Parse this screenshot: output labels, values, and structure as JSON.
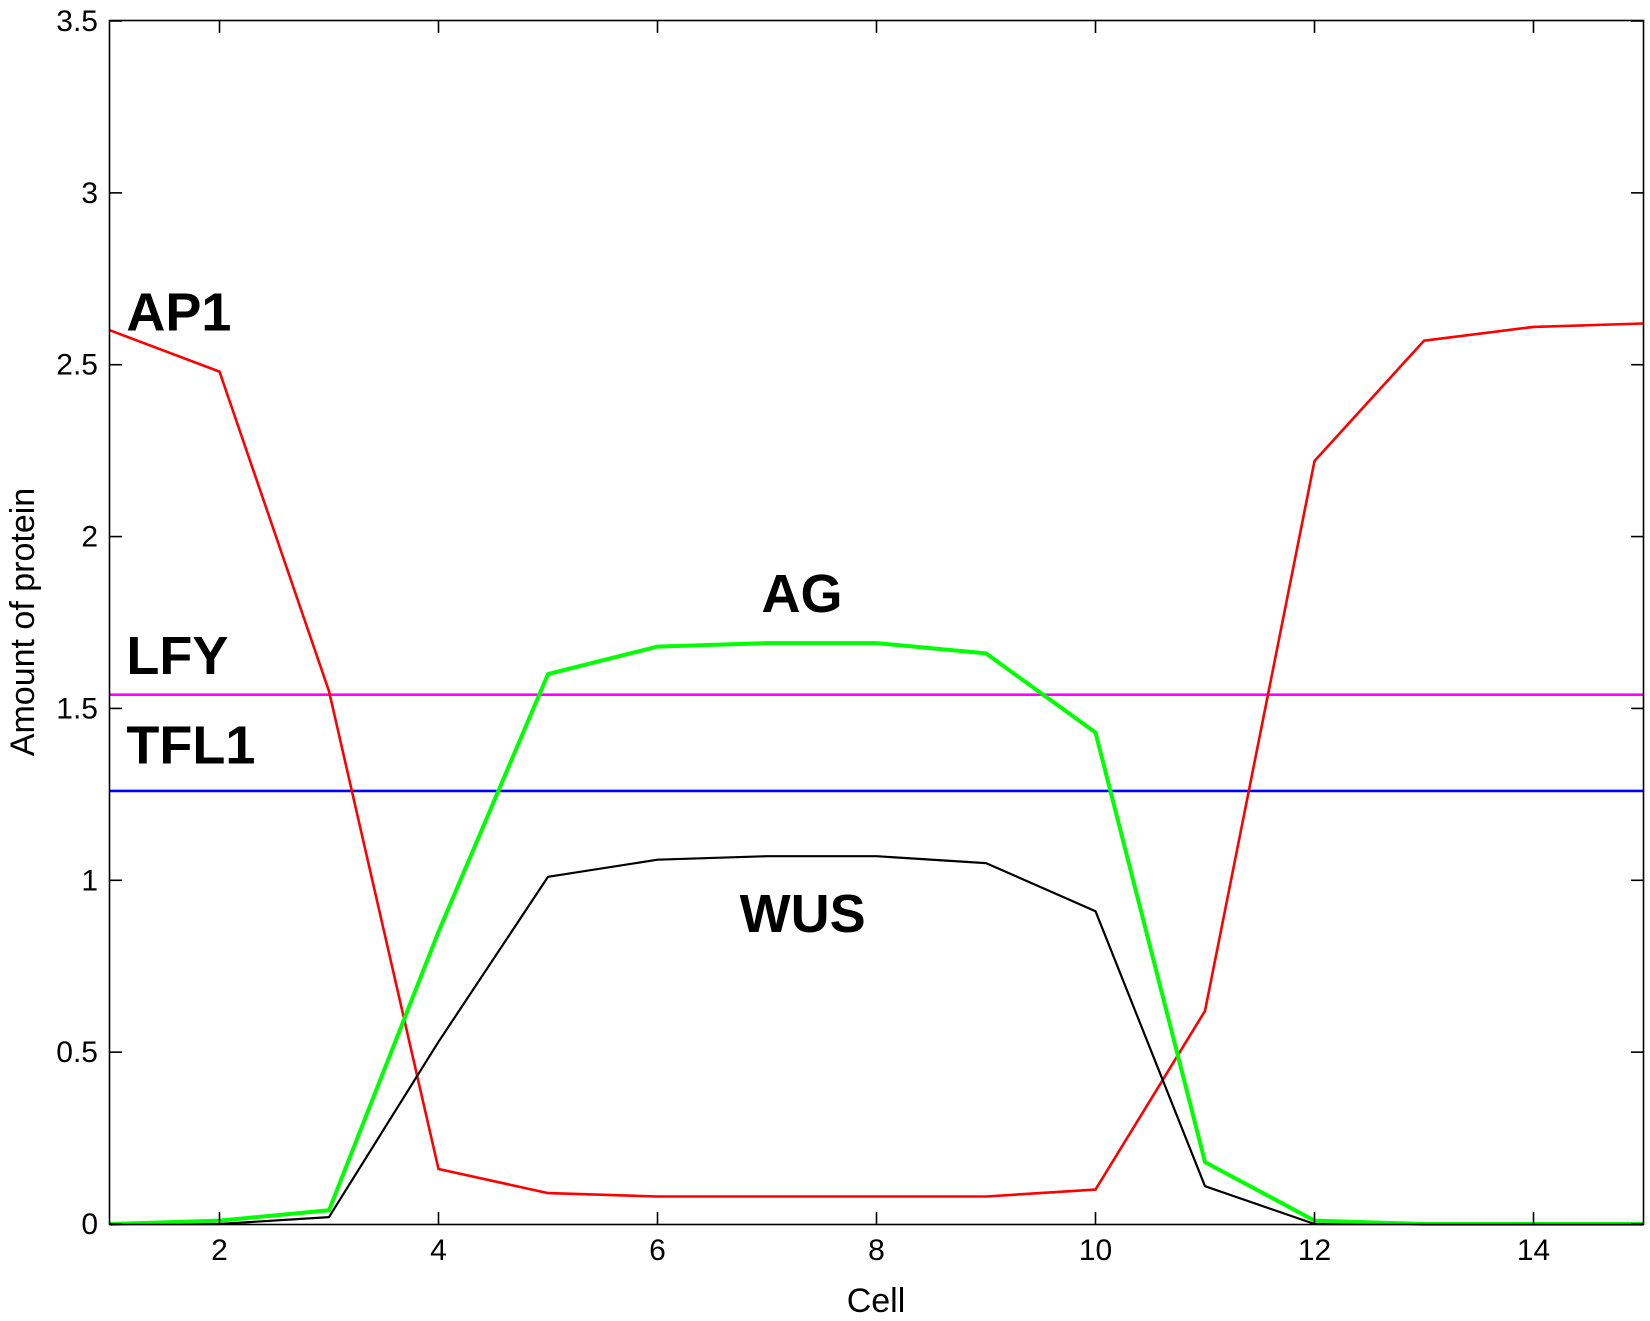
{
  "chart_data": {
    "type": "line",
    "title": "",
    "xlabel": "Cell",
    "ylabel": "Amount of protein",
    "xlim": [
      1,
      15
    ],
    "ylim": [
      0,
      3.5
    ],
    "xticks": [
      2,
      4,
      6,
      8,
      10,
      12,
      14
    ],
    "yticks": [
      0,
      0.5,
      1,
      1.5,
      2,
      2.5,
      3,
      3.5
    ],
    "ytick_labels": [
      "0",
      "0.5",
      "1",
      "1.5",
      "2",
      "2.5",
      "3",
      "3.5"
    ],
    "grid": false,
    "x": [
      1,
      2,
      3,
      4,
      5,
      6,
      7,
      8,
      9,
      10,
      11,
      12,
      13,
      14,
      15
    ],
    "series": [
      {
        "name": "AP1",
        "color": "#ff0000",
        "values": [
          2.6,
          2.48,
          1.55,
          0.16,
          0.09,
          0.08,
          0.08,
          0.08,
          0.08,
          0.1,
          0.62,
          2.22,
          2.57,
          2.61,
          2.62
        ]
      },
      {
        "name": "AG",
        "color": "#00ff00",
        "values": [
          0.0,
          0.01,
          0.04,
          0.85,
          1.6,
          1.68,
          1.69,
          1.69,
          1.66,
          1.43,
          0.18,
          0.01,
          0.0,
          0.0,
          0.0
        ]
      },
      {
        "name": "WUS",
        "color": "#000000",
        "values": [
          0.0,
          0.0,
          0.02,
          0.53,
          1.01,
          1.06,
          1.07,
          1.07,
          1.05,
          0.91,
          0.11,
          0.0,
          0.0,
          0.0,
          0.0
        ]
      },
      {
        "name": "LFY",
        "color": "#ff00ff",
        "values": [
          1.54,
          1.54,
          1.54,
          1.54,
          1.54,
          1.54,
          1.54,
          1.54,
          1.54,
          1.54,
          1.54,
          1.54,
          1.54,
          1.54,
          1.54
        ]
      },
      {
        "name": "TFL1",
        "color": "#0000ff",
        "values": [
          1.26,
          1.26,
          1.26,
          1.26,
          1.26,
          1.26,
          1.26,
          1.26,
          1.26,
          1.26,
          1.26,
          1.26,
          1.26,
          1.26,
          1.26
        ]
      }
    ],
    "annotations": [
      {
        "text": "AP1",
        "x": 1.15,
        "y": 2.6
      },
      {
        "text": "LFY",
        "x": 1.15,
        "y": 1.6
      },
      {
        "text": "TFL1",
        "x": 1.15,
        "y": 1.34
      },
      {
        "text": "AG",
        "x": 6.95,
        "y": 1.78
      },
      {
        "text": "WUS",
        "x": 6.75,
        "y": 0.85
      }
    ]
  }
}
